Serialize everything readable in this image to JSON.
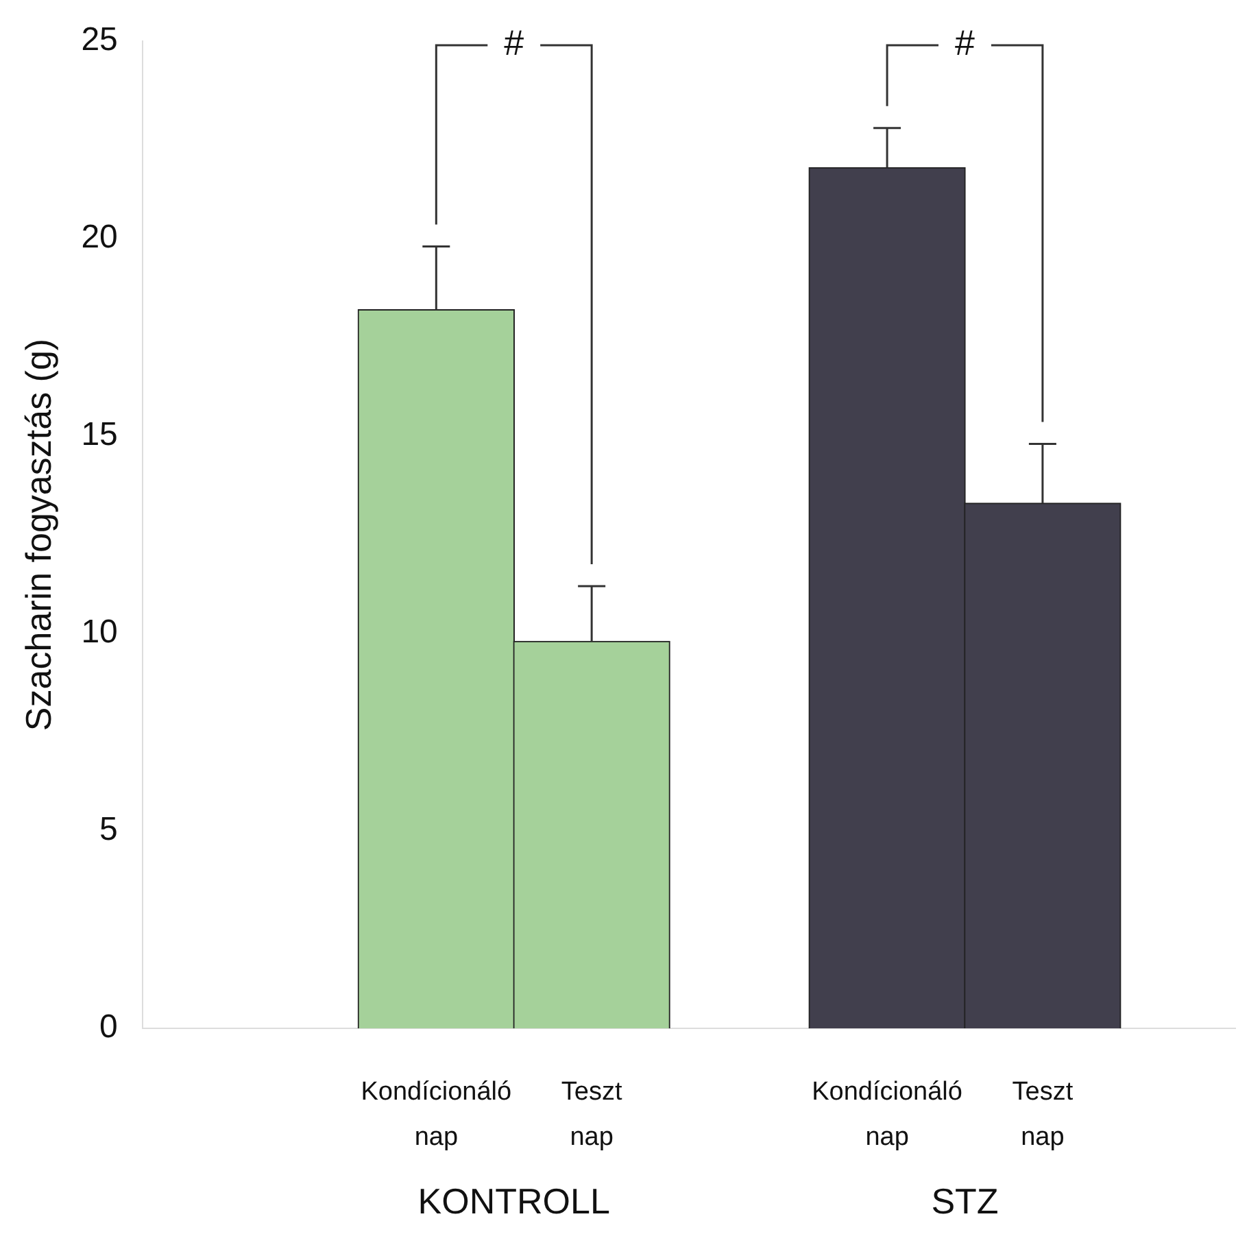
{
  "chart_data": {
    "type": "bar",
    "ylabel": "Szacharin fogyasztás (g)",
    "categories": [
      "Kondícionáló nap",
      "Teszt nap",
      "Kondícionáló nap",
      "Teszt nap"
    ],
    "values": [
      18.2,
      9.8,
      21.8,
      13.3
    ],
    "colors": [
      "#a5d19a",
      "#a5d19a",
      "#413f4d",
      "#413f4d"
    ],
    "errors": [
      [
        18.2,
        19.8
      ],
      [
        9.8,
        11.2
      ],
      [
        21.8,
        22.8
      ],
      [
        13.3,
        14.8
      ]
    ],
    "ylim": [
      0,
      25
    ],
    "yticks": [
      0,
      5,
      10,
      15,
      20,
      25
    ],
    "grid": false,
    "legend": false,
    "annotations": [
      "KONTROLL",
      "STZ",
      "#",
      "#"
    ]
  }
}
